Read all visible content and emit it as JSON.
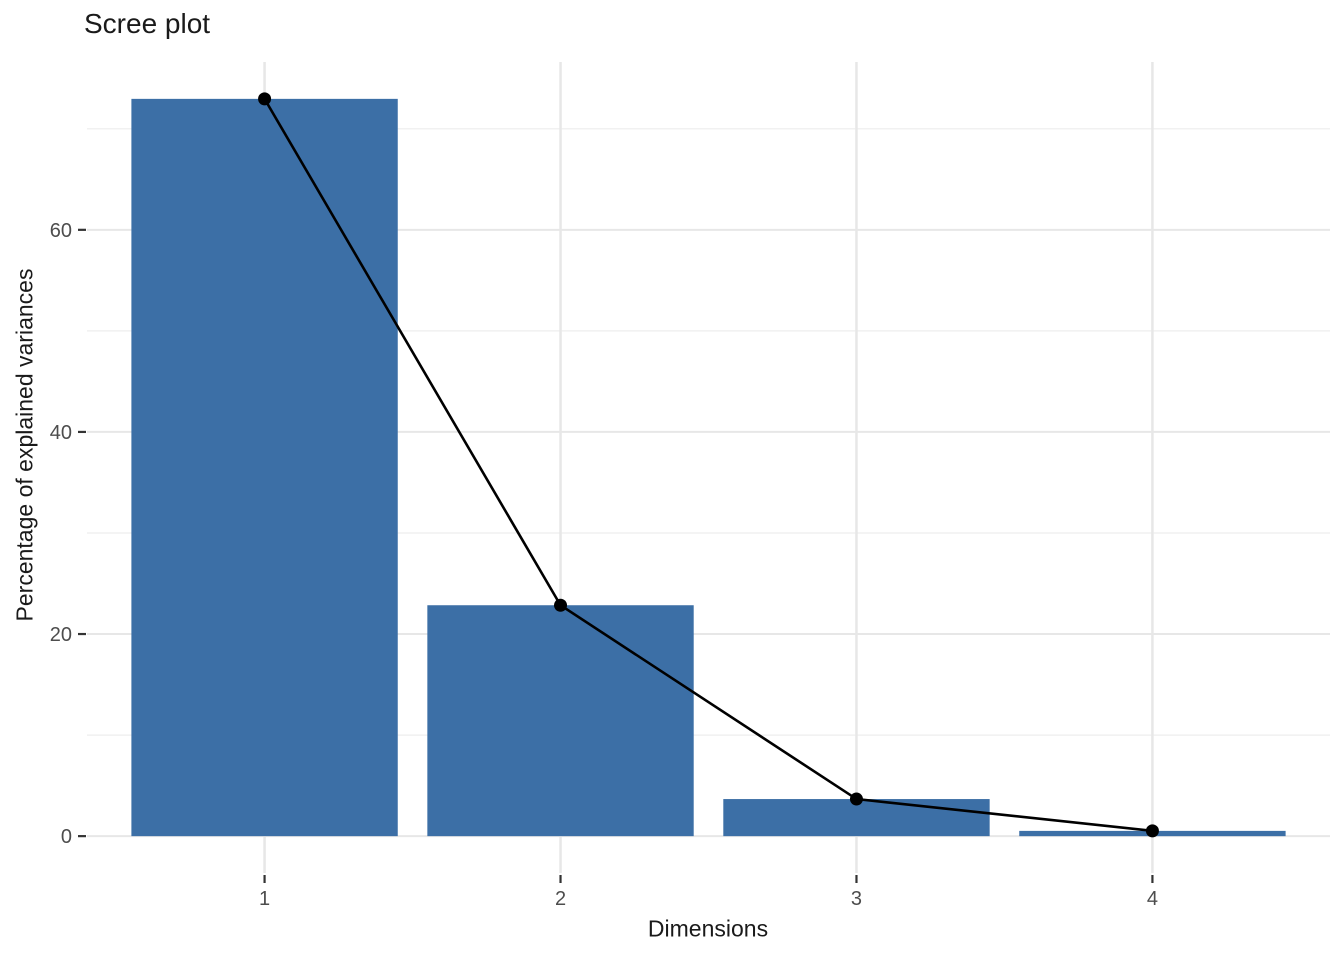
{
  "figure": {
    "title": "Scree plot",
    "x_axis_label": "Dimensions",
    "y_axis_label": "Percentage of explained variances"
  },
  "colors": {
    "background": "#ffffff",
    "bar_fill": "#3C6FA6",
    "line": "#000000",
    "point": "#000000",
    "grid_major": "#E7E7E7",
    "grid_minor": "#F1F1F1",
    "tick_mark": "#333333",
    "tick_label": "#4D4D4D",
    "title_text": "#1a1a1a"
  },
  "chart_data": {
    "type": "bar",
    "overlay": "line+point",
    "title": "Scree plot",
    "xlabel": "Dimensions",
    "ylabel": "Percentage of explained variances",
    "categories": [
      "1",
      "2",
      "3",
      "4"
    ],
    "values": [
      72.96,
      22.85,
      3.67,
      0.52
    ],
    "series": [
      {
        "name": "explained-variance-bars",
        "type": "bar",
        "values": [
          72.96,
          22.85,
          3.67,
          0.52
        ]
      },
      {
        "name": "explained-variance-line",
        "type": "line",
        "values": [
          72.96,
          22.85,
          3.67,
          0.52
        ]
      }
    ],
    "ylim": [
      0,
      72.96
    ],
    "y_axis_expansion": 0.05,
    "y_ticks": [
      0,
      20,
      40,
      60
    ],
    "y_tick_labels": [
      "0",
      "20",
      "40",
      "60"
    ],
    "y_minor_gridlines": [
      10,
      30,
      50,
      70
    ],
    "grid": true,
    "legend_position": "none"
  }
}
